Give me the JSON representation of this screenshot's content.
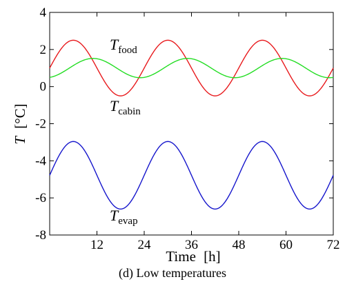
{
  "chart_data": {
    "type": "line",
    "xlabel": "Time",
    "xlabel_unit": "[h]",
    "ylabel": "T",
    "ylabel_unit": "[°C]",
    "xlim": [
      0,
      72
    ],
    "ylim": [
      -8,
      4
    ],
    "x_ticks": [
      12,
      24,
      36,
      48,
      60,
      72
    ],
    "y_ticks": [
      4,
      2,
      0,
      -2,
      -4,
      -6,
      -8
    ],
    "y_tick_labels": [
      "4",
      "2",
      "0",
      "-2",
      "-4",
      "-6",
      "-8"
    ],
    "grid": false,
    "series": [
      {
        "key": "food",
        "color": "#e8191c",
        "mean": 1.0,
        "amplitude": 1.5,
        "period_h": 24,
        "peak_h": 6,
        "label_main": "T",
        "label_sub": "food"
      },
      {
        "key": "cabin",
        "color": "#22dd22",
        "mean": 1.0,
        "amplitude": 0.52,
        "period_h": 24,
        "peak_h": 11,
        "label_main": "T",
        "label_sub": "cabin"
      },
      {
        "key": "evap",
        "color": "#1515cc",
        "mean": -4.78,
        "amplitude": 1.82,
        "period_h": 24,
        "peak_h": 6,
        "label_main": "T",
        "label_sub": "evap"
      }
    ]
  },
  "caption": "(d) Low temperatures"
}
